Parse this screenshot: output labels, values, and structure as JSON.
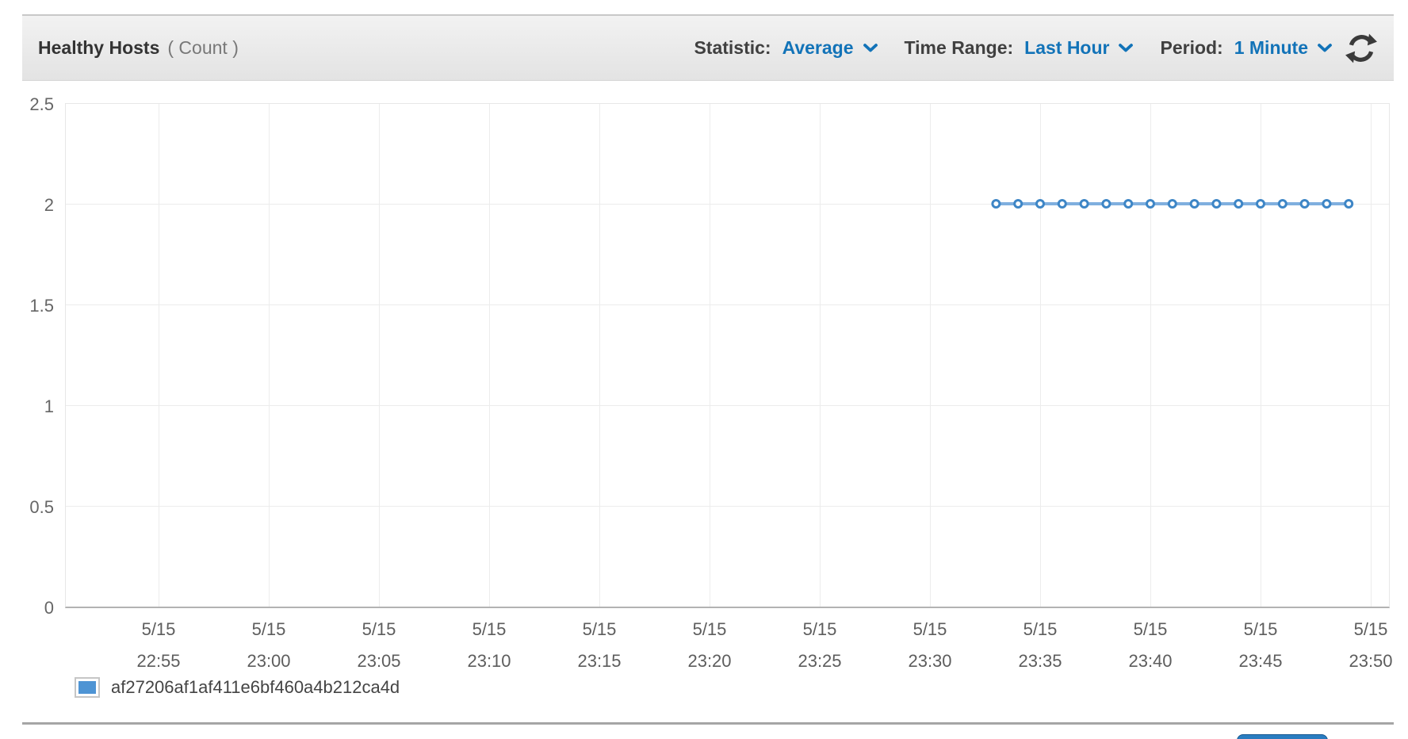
{
  "header": {
    "title": "Healthy Hosts",
    "unit_label": "( Count )",
    "controls": {
      "statistic_label": "Statistic:",
      "statistic_value": "Average",
      "time_range_label": "Time Range:",
      "time_range_value": "Last Hour",
      "period_label": "Period:",
      "period_value": "1 Minute",
      "refresh_icon": "refresh-icon",
      "dropdown_icon": "chevron-down-icon"
    }
  },
  "colors": {
    "link_blue": "#1273b8",
    "header_text": "#404040",
    "series_line": "#7fafdf",
    "marker_stroke": "#3e86c6",
    "marker_fill": "#ffffff",
    "legend_swatch": "#4e94d4",
    "primary_button": "#1f6fb8",
    "gridline": "#ececec"
  },
  "chart_data": {
    "type": "line",
    "title": "Healthy Hosts",
    "ylabel": "Count",
    "ylim": [
      0,
      2.5
    ],
    "yticks": [
      0,
      0.5,
      1,
      1.5,
      2,
      2.5
    ],
    "x_ticks": [
      {
        "date": "5/15",
        "time": "22:55"
      },
      {
        "date": "5/15",
        "time": "23:00"
      },
      {
        "date": "5/15",
        "time": "23:05"
      },
      {
        "date": "5/15",
        "time": "23:10"
      },
      {
        "date": "5/15",
        "time": "23:15"
      },
      {
        "date": "5/15",
        "time": "23:20"
      },
      {
        "date": "5/15",
        "time": "23:25"
      },
      {
        "date": "5/15",
        "time": "23:30"
      },
      {
        "date": "5/15",
        "time": "23:35"
      },
      {
        "date": "5/15",
        "time": "23:40"
      },
      {
        "date": "5/15",
        "time": "23:45"
      },
      {
        "date": "5/15",
        "time": "23:50"
      }
    ],
    "grid": true,
    "legend_position": "bottom-left",
    "series": [
      {
        "name": "af27206af1af411e6bf460a4b212ca4d",
        "values": [
          {
            "time": "23:33",
            "value": 2
          },
          {
            "time": "23:34",
            "value": 2
          },
          {
            "time": "23:35",
            "value": 2
          },
          {
            "time": "23:36",
            "value": 2
          },
          {
            "time": "23:37",
            "value": 2
          },
          {
            "time": "23:38",
            "value": 2
          },
          {
            "time": "23:39",
            "value": 2
          },
          {
            "time": "23:40",
            "value": 2
          },
          {
            "time": "23:41",
            "value": 2
          },
          {
            "time": "23:42",
            "value": 2
          },
          {
            "time": "23:43",
            "value": 2
          },
          {
            "time": "23:44",
            "value": 2
          },
          {
            "time": "23:45",
            "value": 2
          },
          {
            "time": "23:46",
            "value": 2
          },
          {
            "time": "23:47",
            "value": 2
          },
          {
            "time": "23:48",
            "value": 2
          },
          {
            "time": "23:49",
            "value": 2
          }
        ]
      }
    ]
  }
}
